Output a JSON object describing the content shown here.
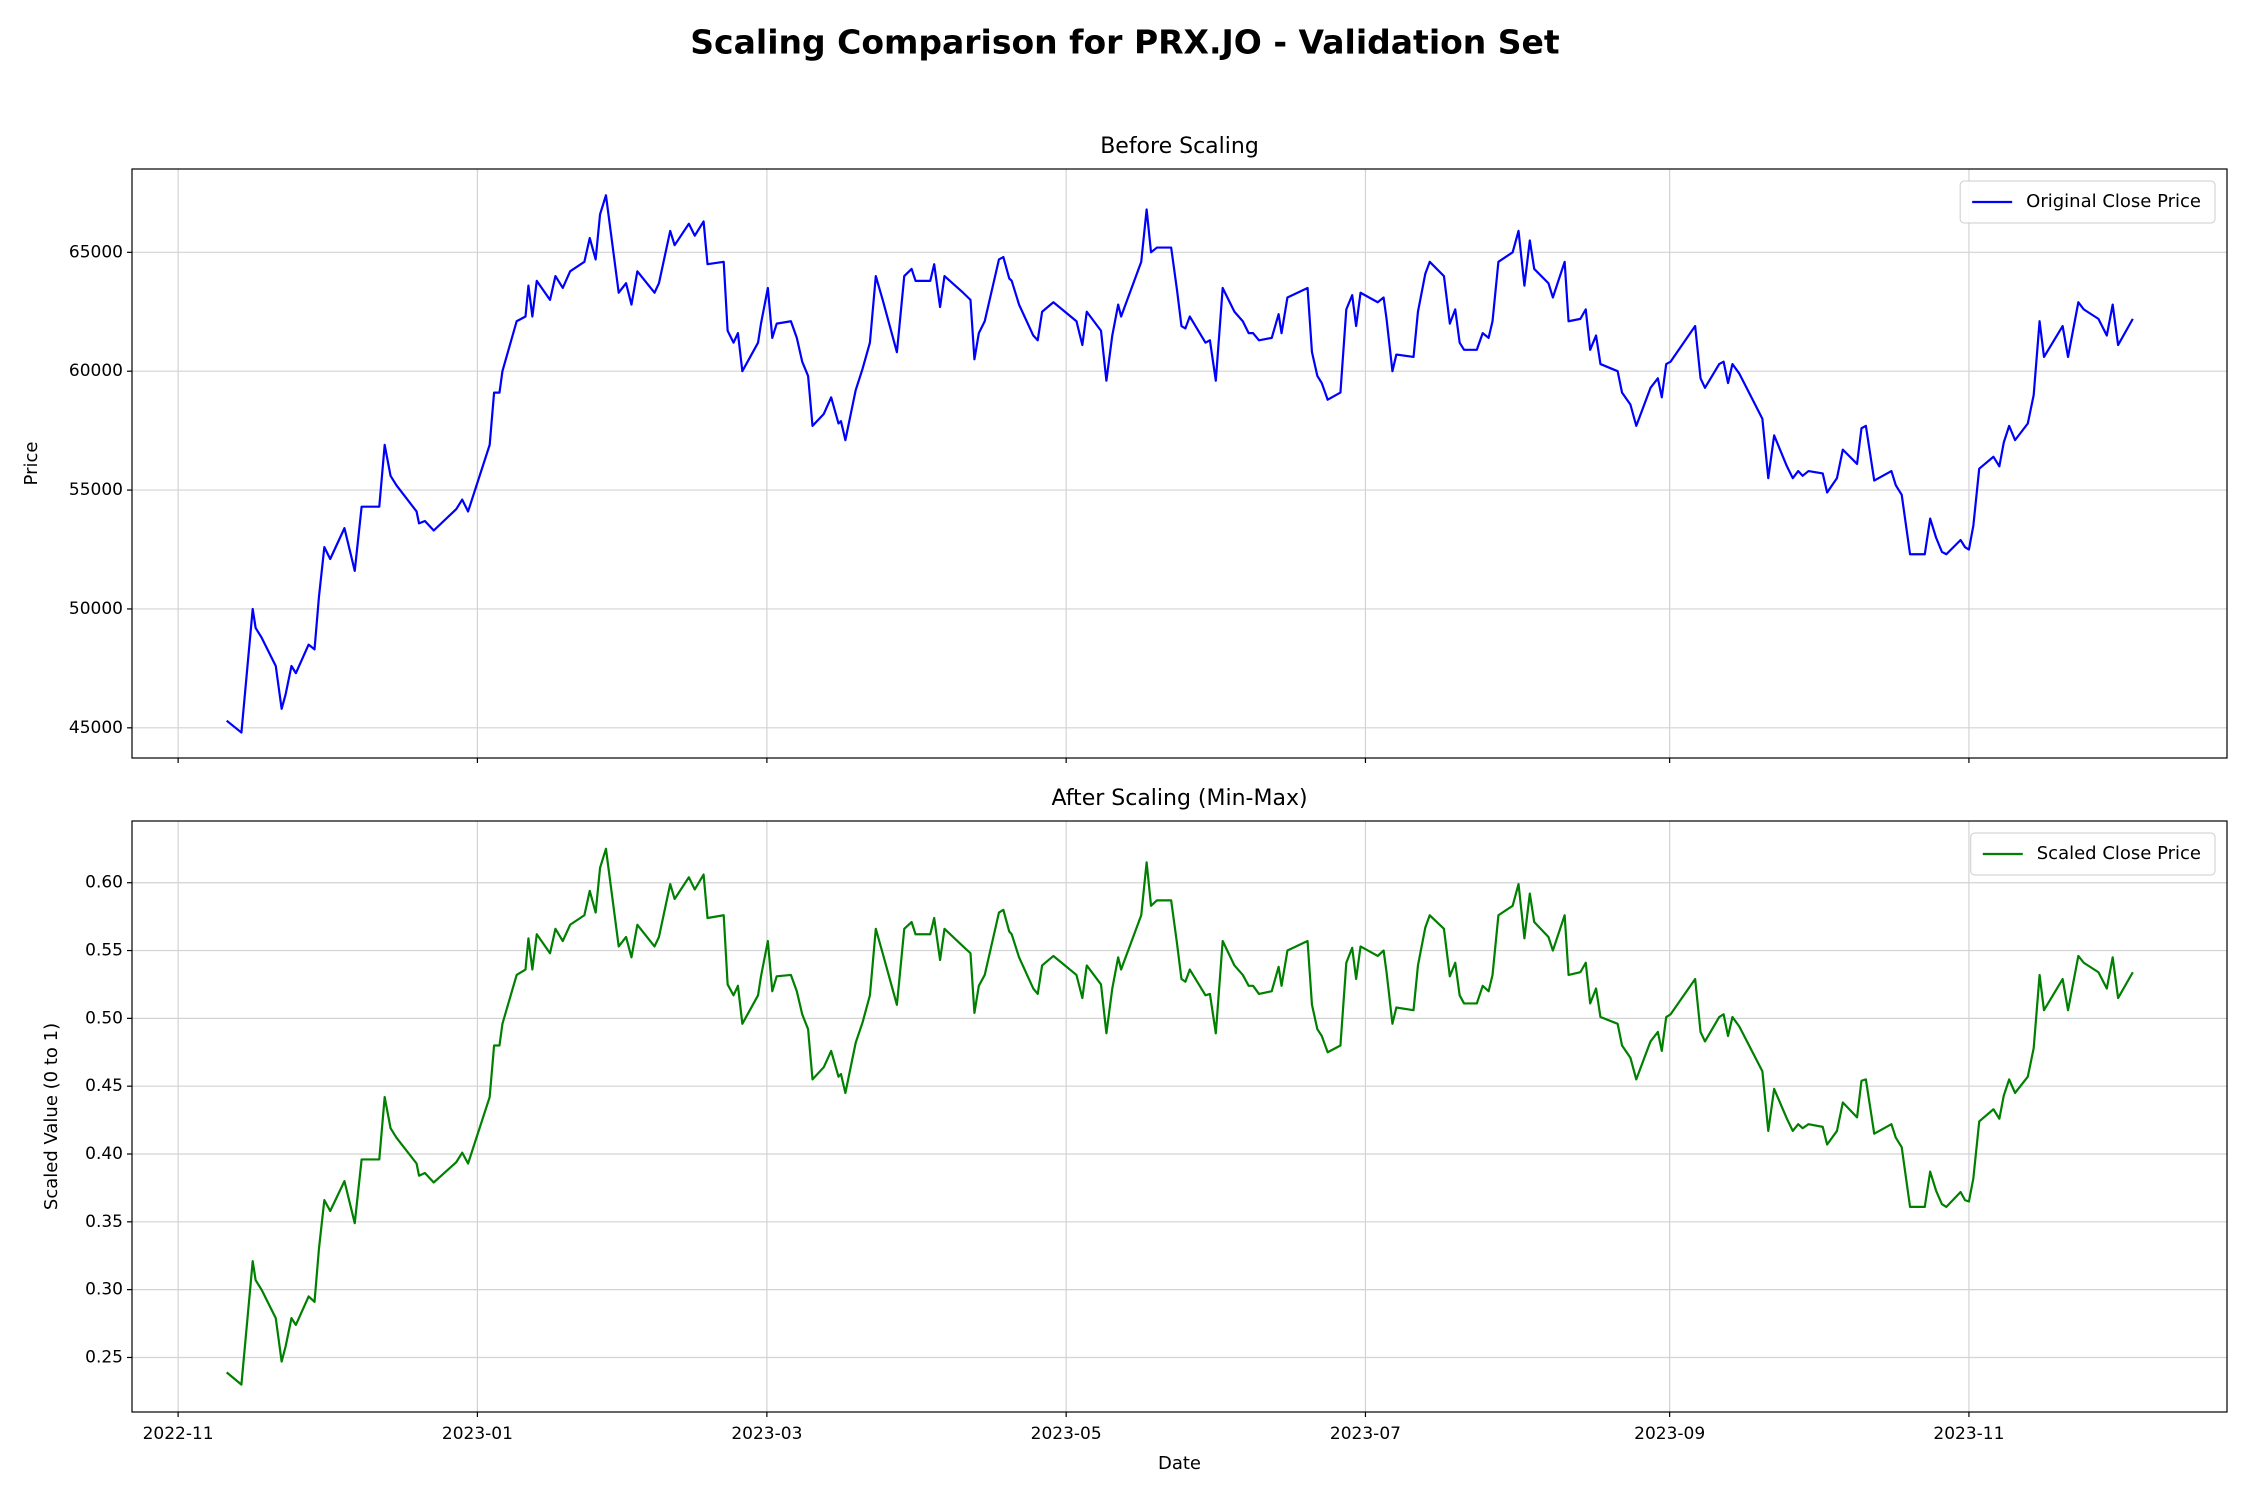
{
  "title": "Scaling Comparison for PRX.JO - Validation Set",
  "chart_data": [
    {
      "type": "line",
      "title": "Before Scaling",
      "ylabel": "Price",
      "grid": true,
      "legend": "upper right",
      "xlim": [
        -9.4,
        417.6
      ],
      "ylim": [
        43731,
        68504
      ],
      "yticks": [
        45000,
        50000,
        55000,
        60000,
        65000
      ],
      "x": [
        9.9,
        12.9,
        15.2,
        15.8,
        17.0,
        19.9,
        21.1,
        21.9,
        23.1,
        24.0,
        26.6,
        27.8,
        28.7,
        29.8,
        31.0,
        33.9,
        36.0,
        37.4,
        41.0,
        42.1,
        43.3,
        44.5,
        48.6,
        49.1,
        50.3,
        52.1,
        56.7,
        57.9,
        59.1,
        63.5,
        64.4,
        65.5,
        66.1,
        69.0,
        70.8,
        71.4,
        72.2,
        73.1,
        75.8,
        76.9,
        78.4,
        79.9,
        82.8,
        83.9,
        85.1,
        86.0,
        87.2,
        89.8,
        91.3,
        92.4,
        93.6,
        97.1,
        98.0,
        100.3,
        101.2,
        104.1,
        105.3,
        107.1,
        107.9,
        111.2,
        112.0,
        113.2,
        114.1,
        115.0,
        118.2,
        118.8,
        120.2,
        121.1,
        122.0,
        124.9,
        126.1,
        127.2,
        128.4,
        129.3,
        131.6,
        133.1,
        134.6,
        135.1,
        136.0,
        138.1,
        139.5,
        141.0,
        142.2,
        143.6,
        146.5,
        148.0,
        149.5,
        150.3,
        153.3,
        154.1,
        155.3,
        156.2,
        160.0,
        161.5,
        162.3,
        163.2,
        164.4,
        167.3,
        168.2,
        169.4,
        169.9,
        171.4,
        174.3,
        175.2,
        176.1,
        178.4,
        183.1,
        184.3,
        185.2,
        188.1,
        189.2,
        190.4,
        191.6,
        192.2,
        196.3,
        197.4,
        198.3,
        199.5,
        202.4,
        203.6,
        204.5,
        205.3,
        206.2,
        209.4,
        210.3,
        211.5,
        212.9,
        215.3,
        217.0,
        218.2,
        219.1,
        220.3,
        222.9,
        224.3,
        224.9,
        226.1,
        230.2,
        231.1,
        232.2,
        233.1,
        234.3,
        236.9,
        238.1,
        239.3,
        240.1,
        241.0,
        244.5,
        245.7,
        246.3,
        247.5,
        248.3,
        251.8,
        252.7,
        254.2,
        255.1,
        258.0,
        259.2,
        260.3,
        261.2,
        262.1,
        264.7,
        265.9,
        267.1,
        267.9,
        269.1,
        272.0,
        273.2,
        274.4,
        275.5,
        276.4,
        279.3,
        280.2,
        282.6,
        283.4,
        285.8,
        286.9,
        287.8,
        289.0,
        289.9,
        293.4,
        294.3,
        296.0,
        297.2,
        300.1,
        301.6,
        302.4,
        303.3,
        304.2,
        309.2,
        310.3,
        311.2,
        314.1,
        315.0,
        315.9,
        316.8,
        318.2,
        322.9,
        324.1,
        325.3,
        327.9,
        329.1,
        330.2,
        331.1,
        332.3,
        335.2,
        336.1,
        338.1,
        339.3,
        342.2,
        343.1,
        344.0,
        345.7,
        349.2,
        350.1,
        351.3,
        353.0,
        356.0,
        357.1,
        358.3,
        359.5,
        360.4,
        363.3,
        364.2,
        365.0,
        365.9,
        367.1,
        370.0,
        371.2,
        372.1,
        373.2,
        374.4,
        377.0,
        378.2,
        379.4,
        380.3,
        384.1,
        385.2,
        387.3,
        388.4,
        391.4,
        393.1,
        394.3,
        395.4,
        398.4
      ],
      "series": [
        {
          "name": "Original Close Price",
          "color": "#0000ff",
          "values": [
            45300,
            44800,
            50000,
            49200,
            48800,
            47600,
            45800,
            46400,
            47600,
            47300,
            48500,
            48300,
            50500,
            52600,
            52100,
            53400,
            51600,
            54300,
            54300,
            56900,
            55600,
            55200,
            54100,
            53600,
            53700,
            53300,
            54200,
            54600,
            54100,
            56900,
            59100,
            59100,
            60000,
            62100,
            62300,
            63600,
            62300,
            63800,
            63000,
            64000,
            63500,
            64200,
            64600,
            65600,
            64700,
            66600,
            67400,
            63300,
            63700,
            62800,
            64200,
            63300,
            63700,
            65900,
            65300,
            66200,
            65700,
            66300,
            64500,
            64600,
            61700,
            61200,
            61600,
            60000,
            61200,
            62000,
            63500,
            61400,
            62000,
            62100,
            61400,
            60400,
            59800,
            57700,
            58200,
            58900,
            57800,
            57900,
            57100,
            59200,
            60100,
            61200,
            64000,
            63000,
            60800,
            64000,
            64300,
            63800,
            63800,
            64500,
            62700,
            64000,
            63300,
            63000,
            60500,
            61600,
            62100,
            64700,
            64800,
            63900,
            63800,
            62800,
            61500,
            61300,
            62500,
            62900,
            62100,
            61100,
            62500,
            61700,
            59600,
            61500,
            62800,
            62300,
            64600,
            66800,
            65000,
            65200,
            65200,
            63400,
            61900,
            61800,
            62300,
            61200,
            61300,
            59600,
            63500,
            62500,
            62100,
            61600,
            61600,
            61300,
            61400,
            62400,
            61600,
            63100,
            63500,
            60800,
            59800,
            59500,
            58800,
            59100,
            62600,
            63200,
            61900,
            63300,
            62900,
            63100,
            62200,
            60000,
            60700,
            60600,
            62500,
            64100,
            64600,
            64000,
            62000,
            62600,
            61200,
            60900,
            60900,
            61600,
            61400,
            62100,
            64600,
            65000,
            65900,
            63600,
            65500,
            64300,
            63700,
            63100,
            64600,
            62100,
            62200,
            62600,
            60900,
            61500,
            60300,
            60000,
            59100,
            58600,
            57700,
            59300,
            59700,
            58900,
            60300,
            60400,
            61900,
            59700,
            59300,
            60300,
            60400,
            59500,
            60300,
            59900,
            58000,
            55500,
            57300,
            56000,
            55500,
            55800,
            55600,
            55800,
            55700,
            54900,
            55500,
            56700,
            56100,
            57600,
            57700,
            55400,
            55800,
            55200,
            54800,
            52300,
            52300,
            53800,
            53000,
            52400,
            52300,
            52900,
            52600,
            52500,
            53500,
            55900,
            56400,
            56000,
            57000,
            57700,
            57100,
            57800,
            59000,
            62100,
            60600,
            61900,
            60600,
            62900,
            62600,
            62200,
            61500,
            62800,
            61100,
            62200
          ]
        }
      ]
    },
    {
      "type": "line",
      "title": "After Scaling (Min-Max)",
      "xlabel": "Date",
      "ylabel": "Scaled Value (0 to 1)",
      "grid": true,
      "legend": "upper right",
      "xlim": [
        -9.4,
        417.6
      ],
      "xticks": [
        {
          "value": 0,
          "label": "2022-11"
        },
        {
          "value": 61,
          "label": "2023-01"
        },
        {
          "value": 120,
          "label": "2023-03"
        },
        {
          "value": 181,
          "label": "2023-05"
        },
        {
          "value": 242,
          "label": "2023-07"
        },
        {
          "value": 304,
          "label": "2023-09"
        },
        {
          "value": 365,
          "label": "2023-11"
        }
      ],
      "ylim": [
        0.2098,
        0.6455
      ],
      "yticks": [
        0.25,
        {
          "value": 0.3,
          "label": "0.30"
        },
        0.35,
        {
          "value": 0.4,
          "label": "0.40"
        },
        0.45,
        {
          "value": 0.5,
          "label": "0.50"
        },
        0.55,
        {
          "value": 0.6,
          "label": "0.60"
        }
      ],
      "x": [
        9.9,
        12.9,
        15.2,
        15.8,
        17.0,
        19.9,
        21.1,
        21.9,
        23.1,
        24.0,
        26.6,
        27.8,
        28.7,
        29.8,
        31.0,
        33.9,
        36.0,
        37.4,
        41.0,
        42.1,
        43.3,
        44.5,
        48.6,
        49.1,
        50.3,
        52.1,
        56.7,
        57.9,
        59.1,
        63.5,
        64.4,
        65.5,
        66.1,
        69.0,
        70.8,
        71.4,
        72.2,
        73.1,
        75.8,
        76.9,
        78.4,
        79.9,
        82.8,
        83.9,
        85.1,
        86.0,
        87.2,
        89.8,
        91.3,
        92.4,
        93.6,
        97.1,
        98.0,
        100.3,
        101.2,
        104.1,
        105.3,
        107.1,
        107.9,
        111.2,
        112.0,
        113.2,
        114.1,
        115.0,
        118.2,
        118.8,
        120.2,
        121.1,
        122.0,
        124.9,
        126.1,
        127.2,
        128.4,
        129.3,
        131.6,
        133.1,
        134.6,
        135.1,
        136.0,
        138.1,
        139.5,
        141.0,
        142.2,
        143.6,
        146.5,
        148.0,
        149.5,
        150.3,
        153.3,
        154.1,
        155.3,
        156.2,
        160.0,
        161.5,
        162.3,
        163.2,
        164.4,
        167.3,
        168.2,
        169.4,
        169.9,
        171.4,
        174.3,
        175.2,
        176.1,
        178.4,
        183.1,
        184.3,
        185.2,
        188.1,
        189.2,
        190.4,
        191.6,
        192.2,
        196.3,
        197.4,
        198.3,
        199.5,
        202.4,
        203.6,
        204.5,
        205.3,
        206.2,
        209.4,
        210.3,
        211.5,
        212.9,
        215.3,
        217.0,
        218.2,
        219.1,
        220.3,
        222.9,
        224.3,
        224.9,
        226.1,
        230.2,
        231.1,
        232.2,
        233.1,
        234.3,
        236.9,
        238.1,
        239.3,
        240.1,
        241.0,
        244.5,
        245.7,
        246.3,
        247.5,
        248.3,
        251.8,
        252.7,
        254.2,
        255.1,
        258.0,
        259.2,
        260.3,
        261.2,
        262.1,
        264.7,
        265.9,
        267.1,
        267.9,
        269.1,
        272.0,
        273.2,
        274.4,
        275.5,
        276.4,
        279.3,
        280.2,
        282.6,
        283.4,
        285.8,
        286.9,
        287.8,
        289.0,
        289.9,
        293.4,
        294.3,
        296.0,
        297.2,
        300.1,
        301.6,
        302.4,
        303.3,
        304.2,
        309.2,
        310.3,
        311.2,
        314.1,
        315.0,
        315.9,
        316.8,
        318.2,
        322.9,
        324.1,
        325.3,
        327.9,
        329.1,
        330.2,
        331.1,
        332.3,
        335.2,
        336.1,
        338.1,
        339.3,
        342.2,
        343.1,
        344.0,
        345.7,
        349.2,
        350.1,
        351.3,
        353.0,
        356.0,
        357.1,
        358.3,
        359.5,
        360.4,
        363.3,
        364.2,
        365.0,
        365.9,
        367.1,
        370.0,
        371.2,
        372.1,
        373.2,
        374.4,
        377.0,
        378.2,
        379.4,
        380.3,
        384.1,
        385.2,
        387.3,
        388.4,
        391.4,
        393.1,
        394.3,
        395.4,
        398.4
      ],
      "series": [
        {
          "name": "Scaled Close Price",
          "color": "#008000",
          "values": [
            0.239,
            0.23,
            0.321,
            0.307,
            0.3,
            0.279,
            0.247,
            0.258,
            0.279,
            0.274,
            0.295,
            0.291,
            0.33,
            0.366,
            0.358,
            0.38,
            0.349,
            0.396,
            0.396,
            0.442,
            0.419,
            0.412,
            0.393,
            0.384,
            0.386,
            0.379,
            0.394,
            0.401,
            0.393,
            0.442,
            0.48,
            0.48,
            0.496,
            0.532,
            0.536,
            0.559,
            0.536,
            0.562,
            0.548,
            0.566,
            0.557,
            0.569,
            0.576,
            0.594,
            0.578,
            0.611,
            0.625,
            0.553,
            0.56,
            0.545,
            0.569,
            0.553,
            0.56,
            0.599,
            0.588,
            0.604,
            0.595,
            0.606,
            0.574,
            0.576,
            0.525,
            0.517,
            0.524,
            0.496,
            0.517,
            0.531,
            0.557,
            0.52,
            0.531,
            0.532,
            0.52,
            0.503,
            0.492,
            0.455,
            0.464,
            0.476,
            0.457,
            0.459,
            0.445,
            0.482,
            0.497,
            0.517,
            0.566,
            0.548,
            0.51,
            0.566,
            0.571,
            0.562,
            0.562,
            0.574,
            0.543,
            0.566,
            0.553,
            0.548,
            0.504,
            0.524,
            0.532,
            0.578,
            0.58,
            0.564,
            0.562,
            0.545,
            0.522,
            0.518,
            0.539,
            0.546,
            0.532,
            0.515,
            0.539,
            0.525,
            0.489,
            0.522,
            0.545,
            0.536,
            0.576,
            0.615,
            0.583,
            0.587,
            0.587,
            0.555,
            0.529,
            0.527,
            0.536,
            0.517,
            0.518,
            0.489,
            0.557,
            0.539,
            0.532,
            0.524,
            0.524,
            0.518,
            0.52,
            0.538,
            0.524,
            0.55,
            0.557,
            0.51,
            0.492,
            0.487,
            0.475,
            0.48,
            0.541,
            0.552,
            0.529,
            0.553,
            0.546,
            0.55,
            0.534,
            0.496,
            0.508,
            0.506,
            0.539,
            0.567,
            0.576,
            0.566,
            0.531,
            0.541,
            0.517,
            0.511,
            0.511,
            0.524,
            0.52,
            0.532,
            0.576,
            0.583,
            0.599,
            0.559,
            0.592,
            0.571,
            0.56,
            0.55,
            0.576,
            0.532,
            0.534,
            0.541,
            0.511,
            0.522,
            0.501,
            0.496,
            0.48,
            0.471,
            0.455,
            0.483,
            0.49,
            0.476,
            0.501,
            0.503,
            0.529,
            0.49,
            0.483,
            0.501,
            0.503,
            0.487,
            0.501,
            0.494,
            0.461,
            0.417,
            0.448,
            0.426,
            0.417,
            0.422,
            0.419,
            0.422,
            0.42,
            0.407,
            0.417,
            0.438,
            0.427,
            0.454,
            0.455,
            0.415,
            0.422,
            0.412,
            0.405,
            0.361,
            0.361,
            0.387,
            0.373,
            0.363,
            0.361,
            0.372,
            0.366,
            0.365,
            0.382,
            0.424,
            0.433,
            0.426,
            0.443,
            0.455,
            0.445,
            0.457,
            0.478,
            0.532,
            0.506,
            0.529,
            0.506,
            0.546,
            0.541,
            0.534,
            0.522,
            0.545,
            0.515,
            0.534
          ]
        }
      ]
    }
  ]
}
